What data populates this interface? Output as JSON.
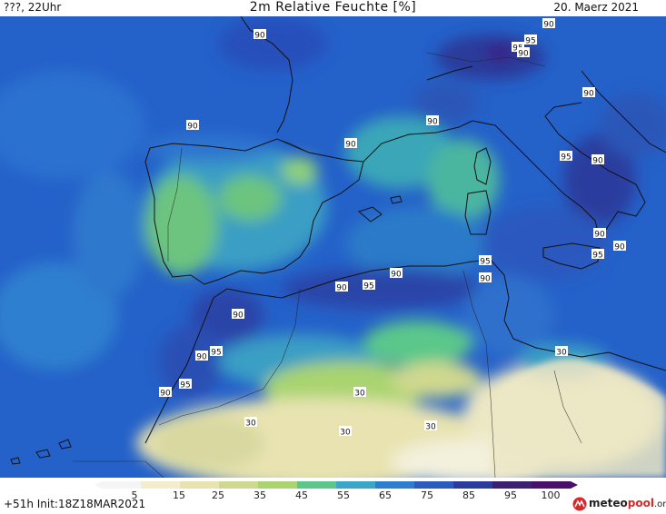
{
  "header": {
    "left": "???, 22Uhr",
    "title": "2m Relative Feuchte [%]",
    "date": "20. Maerz 2021"
  },
  "footer": {
    "init": "+51h Init:18Z18MAR2021"
  },
  "logo": {
    "name_part1": "meteo",
    "name_part2": "pool",
    "suffix": ".org",
    "icon": "meteopool-logo-icon"
  },
  "colorbar": {
    "ticks": [
      "5",
      "15",
      "25",
      "35",
      "45",
      "55",
      "65",
      "75",
      "85",
      "95",
      "100"
    ],
    "colors": [
      "#f5f5f5",
      "#f3eccd",
      "#e8e3b0",
      "#cfd88f",
      "#a9d46f",
      "#5cc78a",
      "#3aa6c8",
      "#2c7fd0",
      "#2a5cc0",
      "#2a3d9e",
      "#3b1f75",
      "#4a0f6b"
    ]
  },
  "contour_labels": [
    {
      "text": "90"
    },
    {
      "text": "95"
    },
    {
      "text": "95"
    },
    {
      "text": "90"
    },
    {
      "text": "90"
    },
    {
      "text": "90"
    },
    {
      "text": "90"
    },
    {
      "text": "90"
    },
    {
      "text": "90"
    },
    {
      "text": "95"
    },
    {
      "text": "90"
    },
    {
      "text": "90"
    },
    {
      "text": "95"
    },
    {
      "text": "90"
    },
    {
      "text": "95"
    },
    {
      "text": "90"
    },
    {
      "text": "90"
    },
    {
      "text": "95"
    },
    {
      "text": "90"
    },
    {
      "text": "90"
    },
    {
      "text": "95"
    },
    {
      "text": "90"
    },
    {
      "text": "95"
    },
    {
      "text": "90"
    },
    {
      "text": "30"
    },
    {
      "text": "30"
    },
    {
      "text": "30"
    },
    {
      "text": "30"
    },
    {
      "text": "30"
    }
  ],
  "map_colors": {
    "sea": "#2461c9",
    "sea_deep": "#2a44a8",
    "land_humid": "#2e74cf",
    "land_mid": "#3a9ec4",
    "land_green": "#6cc47f",
    "sahara_light": "#ece7c4",
    "sahara_pale": "#f3f0dc",
    "very_humid": "#3b1f86",
    "coast": "#111111"
  }
}
